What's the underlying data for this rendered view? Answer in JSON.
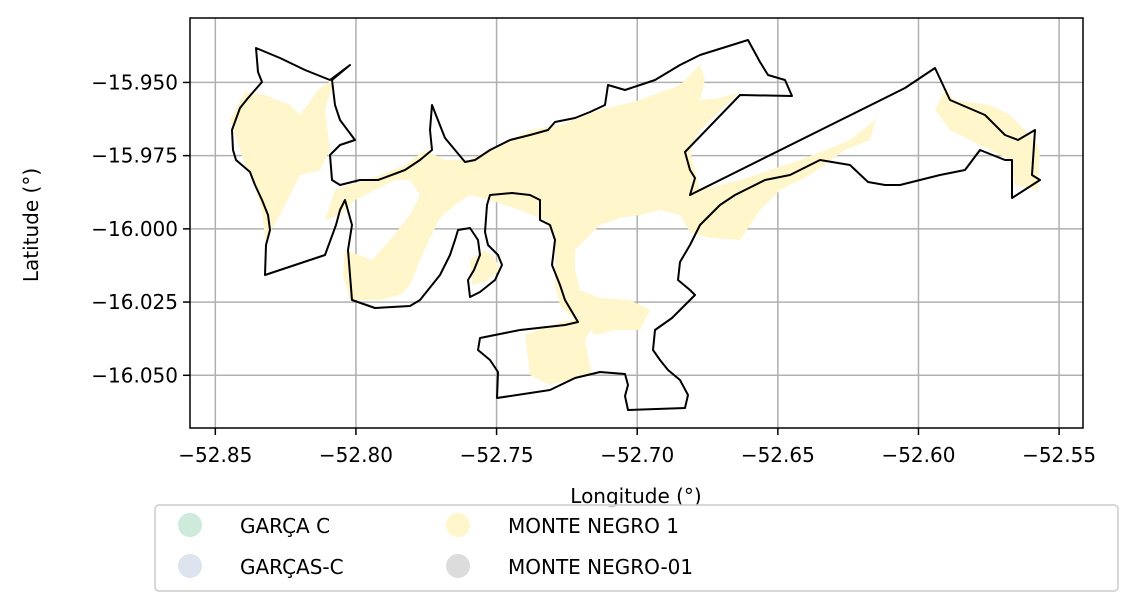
{
  "chart_data": {
    "type": "map",
    "xlabel": "Longitude (°)",
    "ylabel": "Latitude (°)",
    "xlim": [
      -52.859,
      -52.5415
    ],
    "ylim": [
      -16.068,
      -15.928
    ],
    "xticks": [
      -52.85,
      -52.8,
      -52.75,
      -52.7,
      -52.65,
      -52.6,
      -52.55
    ],
    "xtick_labels": [
      "−52.85",
      "−52.80",
      "−52.75",
      "−52.70",
      "−52.65",
      "−52.60",
      "−52.55"
    ],
    "yticks": [
      -15.95,
      -15.975,
      -16.0,
      -16.025,
      -16.05
    ],
    "ytick_labels": [
      "−15.950",
      "−15.975",
      "−16.000",
      "−16.025",
      "−16.050"
    ],
    "grid": true,
    "legend_position": "bottom",
    "legend": [
      {
        "label": "GARÇA C",
        "color": "#cdeadb"
      },
      {
        "label": "GARÇAS-C",
        "color": "#dde4f0"
      },
      {
        "label": "MONTE NEGRO 1",
        "color": "#fff6cc"
      },
      {
        "label": "MONTE NEGRO-01",
        "color": "#dcdcdc"
      }
    ],
    "outline_color": "#000000",
    "fill_color": "#fff6cc"
  }
}
